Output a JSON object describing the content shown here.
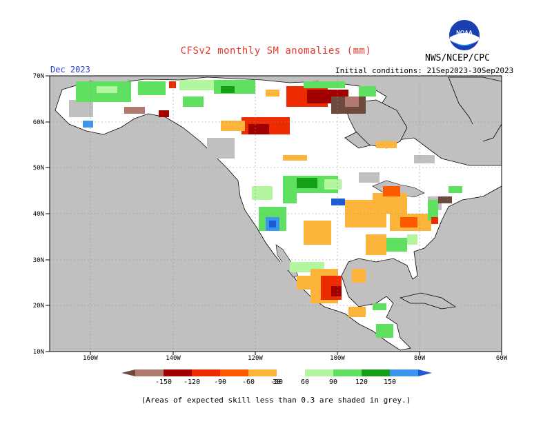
{
  "title": "CFSv2 monthly SM anomalies (mm)",
  "agency": "NWS/NCEP/CPC",
  "logo_text": "NOAA",
  "month": "Dec 2023",
  "initial_conditions": "Initial conditions: 21Sep2023-30Sep2023",
  "lat_labels": [
    "70N",
    "60N",
    "50N",
    "40N",
    "30N",
    "20N",
    "10N"
  ],
  "lon_labels": [
    "160W",
    "140W",
    "120W",
    "100W",
    "80W",
    "60W"
  ],
  "colorbar": {
    "labels": [
      "-150",
      "-120",
      "-90",
      "-60",
      "-30",
      "30",
      "60",
      "90",
      "120",
      "150"
    ],
    "colors": [
      "#6e4a3e",
      "#b07a6e",
      "#a00000",
      "#ee2a00",
      "#fd5a00",
      "#fcb43a",
      "#ffffff",
      "#b4f5a0",
      "#60e060",
      "#14a014",
      "#3c96f0",
      "#1e5ad2"
    ]
  },
  "footnote": "(Areas of expected skill less than 0.3 are shaded in grey.)",
  "colors": {
    "skill_grey": "#c0c0c0",
    "land": "#ffffff",
    "title": "#e8382c",
    "month": "#2a3bd6"
  }
}
